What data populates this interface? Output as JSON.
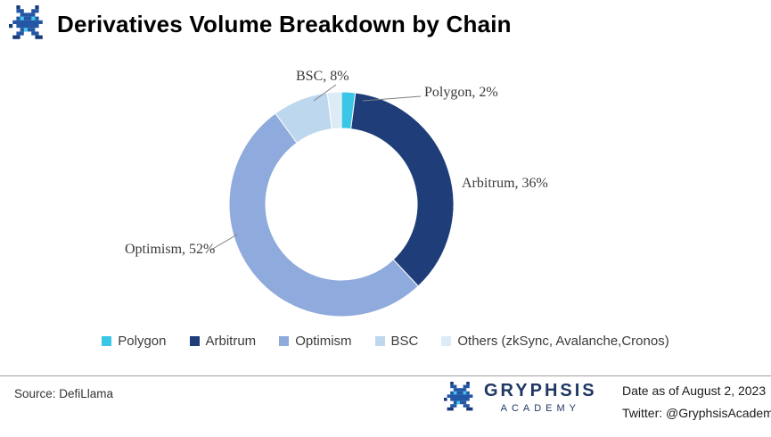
{
  "header": {
    "title": "Derivatives Volume Breakdown by Chain",
    "logo_icon": "pixel-dragon-icon"
  },
  "chart_data": {
    "type": "pie",
    "subtype": "donut",
    "title": "Derivatives Volume Breakdown by Chain",
    "categories": [
      "Polygon",
      "Arbitrum",
      "Optimism",
      "BSC",
      "Others (zkSync, Avalanche,Cronos)"
    ],
    "values": [
      2,
      36,
      52,
      8,
      2
    ],
    "unit": "%",
    "colors": [
      "#3bc6e8",
      "#1f3e79",
      "#8faadc",
      "#bdd7ee",
      "#ddebf7"
    ],
    "start_angle_deg": 0,
    "direction": "clockwise",
    "legend_position": "bottom",
    "callouts": {
      "bsc": "BSC, 8%",
      "polygon": "Polygon, 2%",
      "arbitrum": "Arbitrum, 36%",
      "optimism": "Optimism, 52%"
    }
  },
  "footer": {
    "source": "Source: DefiLlama",
    "brand": {
      "name": "GRYPHSIS",
      "subtitle": "ACADEMY",
      "icon": "pixel-dragon-icon"
    },
    "date": "Date as of August 2, 2023",
    "twitter": "Twitter: @GryphsisAcademy"
  }
}
